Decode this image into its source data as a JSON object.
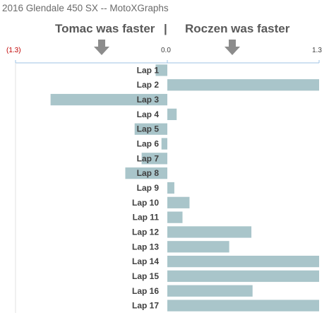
{
  "title": "2016 Glendale 450 SX -- MotoXGraphs",
  "annotations": {
    "left": "Tomac was faster",
    "separator": "|",
    "right": "Roczen was faster",
    "arrow_icon": "down-arrow-icon"
  },
  "axis": {
    "tick_neg": "(1.3)",
    "tick_zero": "0.0",
    "tick_pos": "1.3"
  },
  "colors": {
    "bar": "#a9c5ca",
    "axis": "#9dc3e6",
    "negative_tick": "#c00000",
    "arrow": "#8c8c8c"
  },
  "chart_data": {
    "type": "bar",
    "orientation": "horizontal",
    "title": "2016 Glendale 450 SX -- MotoXGraphs",
    "categories": [
      "Lap 1",
      "Lap 2",
      "Lap 3",
      "Lap 4",
      "Lap 5",
      "Lap 6",
      "Lap 7",
      "Lap 8",
      "Lap 9",
      "Lap 10",
      "Lap 11",
      "Lap 12",
      "Lap 13",
      "Lap 14",
      "Lap 15",
      "Lap 16",
      "Lap 17"
    ],
    "values": [
      -0.1,
      1.3,
      -1.0,
      0.08,
      -0.28,
      -0.05,
      -0.22,
      -0.36,
      0.06,
      0.19,
      0.13,
      0.72,
      0.53,
      1.3,
      1.3,
      0.73,
      1.3
    ],
    "xlim": [
      -1.3,
      1.3
    ],
    "xticks": [
      "(1.3)",
      "0.0",
      "1.3"
    ],
    "grid": false,
    "legend": "none"
  }
}
